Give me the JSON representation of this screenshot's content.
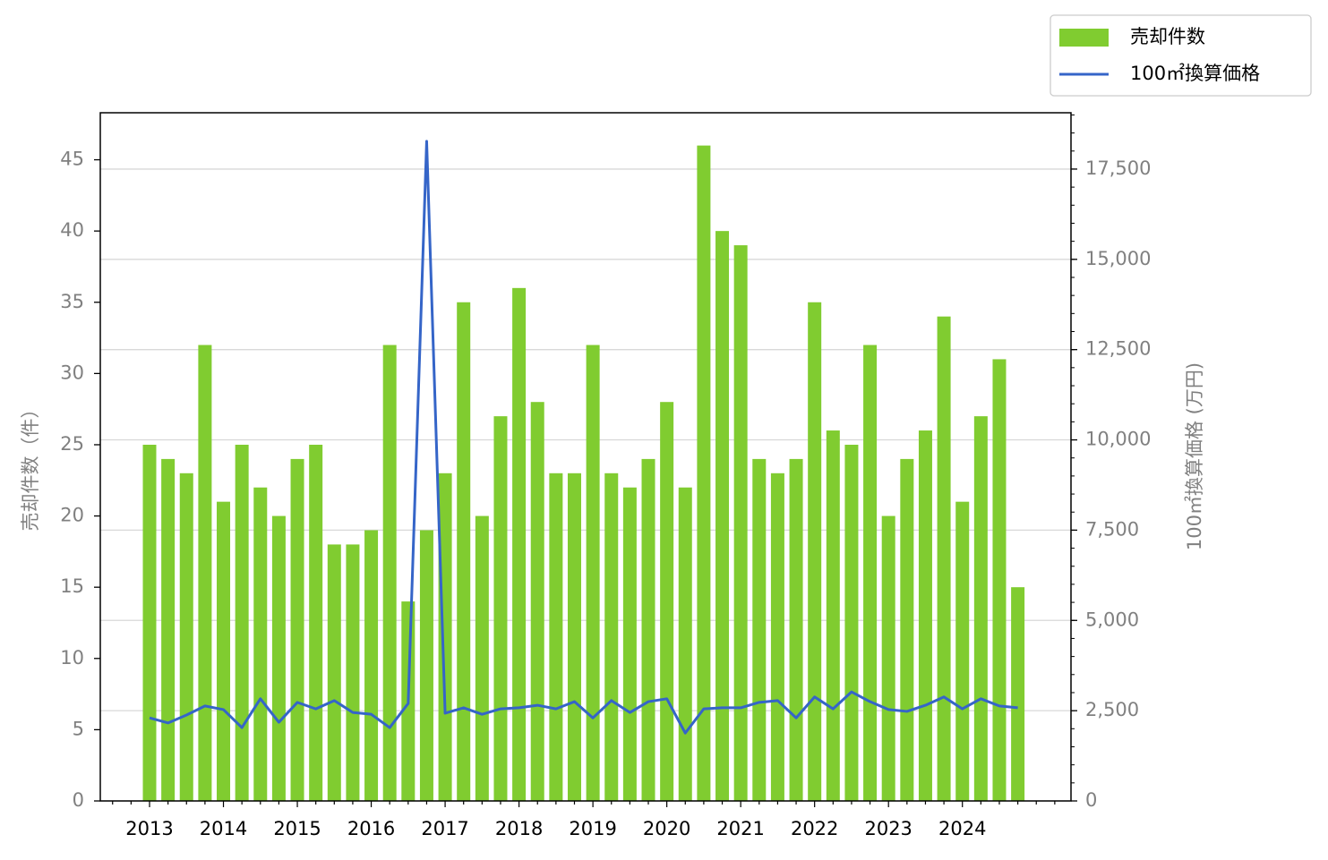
{
  "chart_data": {
    "type": "bar",
    "categories": [
      "2013",
      null,
      null,
      null,
      "2014",
      null,
      null,
      null,
      "2015",
      null,
      null,
      null,
      "2016",
      null,
      null,
      null,
      "2017",
      null,
      null,
      null,
      "2018",
      null,
      null,
      null,
      "2019",
      null,
      null,
      null,
      "2020",
      null,
      null,
      null,
      "2021",
      null,
      null,
      null,
      "2022",
      null,
      null,
      null,
      "2023",
      null,
      null,
      null,
      "2024",
      null,
      null,
      null
    ],
    "series": [
      {
        "name": "売却件数",
        "type": "bar",
        "color": "#80cc30",
        "values": [
          25,
          24,
          23,
          32,
          21,
          25,
          22,
          20,
          24,
          25,
          18,
          18,
          19,
          32,
          14,
          19,
          23,
          35,
          20,
          27,
          36,
          28,
          23,
          23,
          32,
          23,
          22,
          24,
          28,
          22,
          46,
          40,
          39,
          24,
          23,
          24,
          35,
          26,
          25,
          32,
          20,
          24,
          26,
          34,
          21,
          27,
          31,
          15
        ]
      },
      {
        "name": "100㎡換算価格",
        "type": "line",
        "axis": "y2",
        "color": "#3565c8",
        "values": [
          2300,
          2160,
          2380,
          2630,
          2530,
          2030,
          2830,
          2180,
          2730,
          2550,
          2780,
          2450,
          2400,
          2030,
          2700,
          18270,
          2430,
          2580,
          2400,
          2550,
          2580,
          2650,
          2550,
          2750,
          2300,
          2780,
          2450,
          2750,
          2830,
          1880,
          2550,
          2580,
          2580,
          2730,
          2780,
          2300,
          2880,
          2550,
          3020,
          2750,
          2530,
          2480,
          2650,
          2880,
          2550,
          2830,
          2630,
          2580
        ]
      }
    ],
    "ylabel": "売却件数（件）",
    "y2label": "100㎡換算価格 (万円)",
    "ylim": [
      0,
      48.3
    ],
    "yticks": [
      0,
      5,
      10,
      15,
      20,
      25,
      30,
      35,
      40,
      45
    ],
    "y2lim": [
      0,
      19060
    ],
    "y2ticks": [
      0,
      {
        "value": 2500,
        "label": "2,500"
      },
      {
        "value": 5000,
        "label": "5,000"
      },
      {
        "value": 7500,
        "label": "7,500"
      },
      {
        "value": 10000,
        "label": "10,000"
      },
      {
        "value": 12500,
        "label": "12,500"
      },
      {
        "value": 15000,
        "label": "15,000"
      },
      {
        "value": 17500,
        "label": "17,500"
      }
    ],
    "grid": "y2",
    "legend": "upper-right-outside"
  }
}
